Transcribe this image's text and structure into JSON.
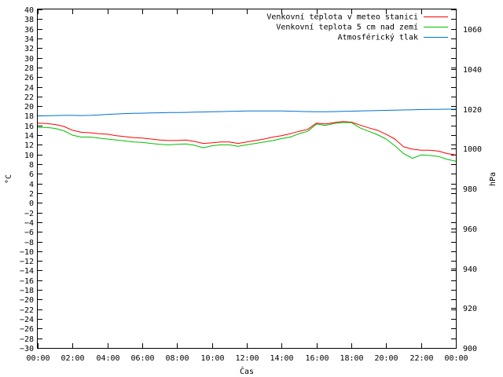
{
  "chart_data": {
    "type": "line",
    "title": "",
    "xlabel": "Čas",
    "ylabel": "°C",
    "y2label": "hPa",
    "legend_position": "top-right",
    "grid": false,
    "xlim": [
      "00:00",
      "24:00"
    ],
    "ylim": [
      -30,
      40
    ],
    "y2lim": [
      900,
      1070
    ],
    "x_ticks": [
      "00:00",
      "02:00",
      "04:00",
      "06:00",
      "08:00",
      "10:00",
      "12:00",
      "14:00",
      "16:00",
      "18:00",
      "20:00",
      "22:00",
      "00:00"
    ],
    "y_ticks": [
      -30,
      -28,
      -26,
      -24,
      -22,
      -20,
      -18,
      -16,
      -14,
      -12,
      -10,
      -8,
      -6,
      -4,
      -2,
      0,
      2,
      4,
      6,
      8,
      10,
      12,
      14,
      16,
      18,
      20,
      22,
      24,
      26,
      28,
      30,
      32,
      34,
      36,
      38,
      40
    ],
    "y2_ticks": [
      900,
      920,
      940,
      960,
      980,
      1000,
      1020,
      1040,
      1060
    ],
    "x": [
      "00:00",
      "00:30",
      "01:00",
      "01:30",
      "02:00",
      "02:30",
      "03:00",
      "03:30",
      "04:00",
      "04:30",
      "05:00",
      "05:30",
      "06:00",
      "06:30",
      "07:00",
      "07:30",
      "08:00",
      "08:30",
      "09:00",
      "09:30",
      "10:00",
      "10:30",
      "11:00",
      "11:30",
      "12:00",
      "12:30",
      "13:00",
      "13:30",
      "14:00",
      "14:30",
      "15:00",
      "15:30",
      "16:00",
      "16:30",
      "17:00",
      "17:30",
      "18:00",
      "18:30",
      "19:00",
      "19:30",
      "20:00",
      "20:30",
      "21:00",
      "21:30",
      "22:00",
      "22:30",
      "23:00",
      "23:30",
      "24:00"
    ],
    "series": [
      {
        "name": "Venkovní teplota v meteo stanici",
        "color": "#ff0000",
        "axis": "left",
        "values": [
          16.5,
          16.4,
          16.2,
          15.8,
          15.0,
          14.6,
          14.5,
          14.3,
          14.2,
          13.9,
          13.7,
          13.5,
          13.4,
          13.2,
          13.0,
          12.9,
          12.9,
          13.0,
          12.7,
          12.3,
          12.4,
          12.6,
          12.6,
          12.3,
          12.6,
          12.9,
          13.2,
          13.6,
          13.9,
          14.3,
          14.8,
          15.2,
          16.5,
          16.3,
          16.6,
          16.8,
          16.7,
          16.1,
          15.5,
          15.0,
          14.2,
          13.2,
          11.6,
          11.1,
          10.9,
          10.9,
          10.7,
          10.2,
          9.9
        ]
      },
      {
        "name": "Venkovní teplota 5 cm nad zemí",
        "color": "#00c000",
        "axis": "left",
        "values": [
          15.6,
          15.6,
          15.4,
          14.9,
          14.0,
          13.6,
          13.6,
          13.4,
          13.2,
          13.0,
          12.8,
          12.6,
          12.5,
          12.3,
          12.1,
          12.0,
          12.1,
          12.2,
          11.9,
          11.4,
          11.8,
          12.0,
          12.0,
          11.7,
          12.0,
          12.3,
          12.6,
          12.9,
          13.3,
          13.6,
          14.3,
          14.8,
          16.3,
          16.0,
          16.4,
          16.6,
          16.6,
          15.5,
          14.8,
          14.1,
          13.2,
          11.8,
          10.2,
          9.2,
          9.9,
          9.8,
          9.6,
          9.0,
          8.6
        ]
      },
      {
        "name": "Atmosférický tlak",
        "color": "#0070d0",
        "axis": "right",
        "values": [
          1016.5,
          1016.6,
          1016.7,
          1016.8,
          1016.8,
          1016.7,
          1016.8,
          1017.0,
          1017.3,
          1017.5,
          1017.7,
          1017.8,
          1017.9,
          1018.0,
          1018.1,
          1018.2,
          1018.2,
          1018.3,
          1018.4,
          1018.5,
          1018.6,
          1018.7,
          1018.8,
          1018.9,
          1019.0,
          1019.0,
          1019.0,
          1019.0,
          1019.0,
          1018.9,
          1018.8,
          1018.7,
          1018.6,
          1018.6,
          1018.7,
          1018.8,
          1018.9,
          1019.0,
          1019.1,
          1019.2,
          1019.3,
          1019.4,
          1019.5,
          1019.6,
          1019.7,
          1019.8,
          1019.8,
          1019.9,
          1019.9
        ]
      }
    ]
  }
}
